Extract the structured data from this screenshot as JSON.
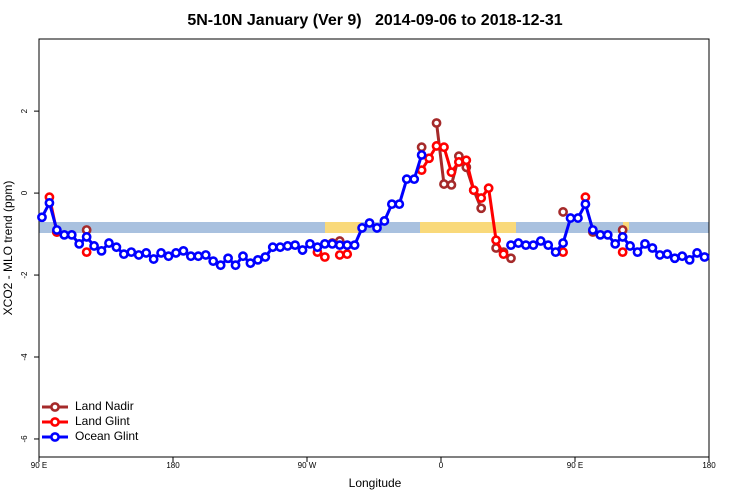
{
  "chart_data": {
    "type": "line",
    "title": "5N-10N January (Ver 9)   2014-09-06 to 2018-12-31",
    "x_label": "Longitude",
    "y_label": "XCO2 - MLO trend (ppm)",
    "xlim": [
      90,
      540
    ],
    "xticks": [
      {
        "value": 90,
        "label": "90 E"
      },
      180,
      {
        "value": 270,
        "label": "90 W"
      },
      {
        "value": 360,
        "label": "0"
      },
      {
        "value": 450,
        "label": "90 E"
      },
      {
        "value": 540,
        "label": "180"
      }
    ],
    "ylim": [
      -6.44,
      3.76
    ],
    "yticks": [
      -6,
      -4,
      -2,
      0,
      2
    ],
    "grid": false,
    "legend": "bottom-left",
    "x": [
      92,
      97,
      102,
      107,
      112,
      117,
      122,
      127,
      132,
      137,
      142,
      147,
      152,
      157,
      162,
      167,
      172,
      177,
      182,
      187,
      192,
      197,
      202,
      207,
      212,
      217,
      222,
      227,
      232,
      237,
      242,
      247,
      252,
      257,
      262,
      267,
      272,
      277,
      282,
      287,
      292,
      297,
      302,
      307,
      312,
      317,
      322,
      327,
      332,
      337,
      342,
      347,
      352,
      357,
      362,
      367,
      372,
      377,
      382,
      387,
      392,
      397,
      402,
      407,
      412,
      417,
      422,
      427,
      432,
      437,
      442,
      447,
      452,
      457,
      462,
      467,
      472,
      477,
      482,
      487,
      492,
      497,
      502,
      507,
      512,
      517,
      522,
      527,
      532,
      537
    ],
    "series": [
      {
        "name": "Land Nadir",
        "color": "#a52a2a",
        "values": [
          null,
          null,
          -0.95,
          null,
          null,
          null,
          -0.9,
          null,
          null,
          null,
          null,
          null,
          null,
          null,
          null,
          null,
          null,
          null,
          null,
          null,
          null,
          null,
          null,
          null,
          null,
          null,
          null,
          null,
          null,
          null,
          null,
          null,
          null,
          null,
          null,
          null,
          null,
          null,
          null,
          -1.22,
          -1.17,
          null,
          null,
          null,
          null,
          null,
          null,
          null,
          null,
          null,
          null,
          1.12,
          null,
          1.71,
          0.22,
          0.2,
          0.9,
          0.63,
          0.07,
          -0.37,
          null,
          -1.34,
          -1.44,
          -1.59,
          null,
          null,
          null,
          null,
          null,
          null,
          -0.46,
          null,
          null,
          null,
          -0.95,
          null,
          null,
          null,
          -0.9,
          null,
          null,
          null,
          null,
          null,
          null,
          null,
          null,
          null,
          null,
          null
        ]
      },
      {
        "name": "Land Glint",
        "color": "#ff0000",
        "values": [
          null,
          -0.1,
          -0.95,
          null,
          null,
          null,
          -1.44,
          null,
          null,
          null,
          null,
          null,
          null,
          null,
          null,
          null,
          null,
          null,
          null,
          null,
          null,
          null,
          null,
          null,
          null,
          null,
          null,
          null,
          null,
          null,
          null,
          null,
          null,
          null,
          null,
          null,
          null,
          -1.44,
          -1.56,
          null,
          -1.51,
          -1.49,
          null,
          null,
          null,
          null,
          null,
          null,
          null,
          null,
          null,
          0.56,
          0.85,
          1.15,
          1.12,
          0.51,
          0.76,
          0.8,
          0.07,
          -0.12,
          0.12,
          -1.15,
          -1.49,
          null,
          null,
          null,
          null,
          null,
          null,
          null,
          -1.44,
          null,
          null,
          -0.1,
          null,
          null,
          null,
          null,
          -1.44,
          null,
          null,
          null,
          null,
          null,
          null,
          null,
          null,
          null,
          null,
          null
        ]
      },
      {
        "name": "Ocean Glint",
        "color": "#0000ff",
        "values": [
          -0.59,
          -0.24,
          -0.9,
          -1.02,
          -1.02,
          -1.24,
          -1.07,
          -1.29,
          -1.41,
          -1.22,
          -1.32,
          -1.49,
          -1.44,
          -1.51,
          -1.46,
          -1.61,
          -1.46,
          -1.54,
          -1.46,
          -1.41,
          -1.54,
          -1.54,
          -1.51,
          -1.66,
          -1.76,
          -1.59,
          -1.76,
          -1.54,
          -1.71,
          -1.63,
          -1.56,
          -1.32,
          -1.32,
          -1.29,
          -1.27,
          -1.39,
          -1.24,
          -1.32,
          -1.24,
          -1.24,
          -1.27,
          -1.27,
          -1.27,
          -0.85,
          -0.73,
          -0.85,
          -0.68,
          -0.27,
          -0.27,
          0.34,
          0.34,
          0.93,
          null,
          null,
          null,
          null,
          null,
          null,
          null,
          null,
          null,
          null,
          null,
          -1.27,
          -1.22,
          -1.27,
          -1.27,
          -1.17,
          -1.27,
          -1.44,
          -1.22,
          -0.61,
          -0.61,
          -0.27,
          -0.9,
          -1.02,
          -1.02,
          -1.24,
          -1.07,
          -1.29,
          -1.44,
          -1.24,
          -1.34,
          -1.51,
          -1.49,
          -1.59,
          -1.54,
          -1.63,
          -1.46,
          -1.56
        ]
      }
    ]
  }
}
